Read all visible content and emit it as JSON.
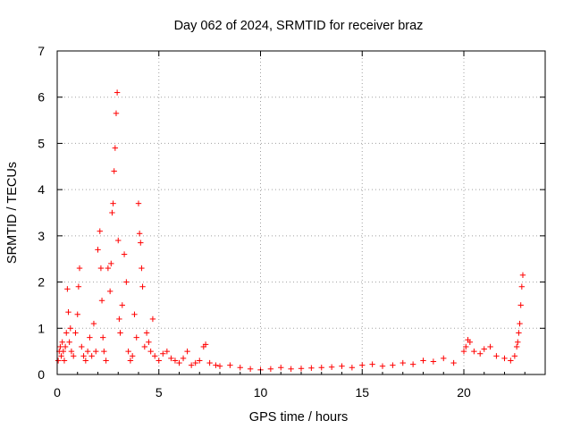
{
  "chart_data": {
    "type": "scatter",
    "title": "Day 062 of 2024, SRMTID for receiver braz",
    "xlabel": "GPS time / hours",
    "ylabel": "SRMTID / TECUs",
    "xlim": [
      0,
      24
    ],
    "ylim": [
      0,
      7
    ],
    "xticks": [
      0,
      5,
      10,
      15,
      20
    ],
    "yticks": [
      0,
      1,
      2,
      3,
      4,
      5,
      6,
      7
    ],
    "grid": true,
    "marker": "+",
    "color": "#ff0000",
    "series": [
      {
        "name": "SRMTID",
        "x": [
          0.05,
          0.1,
          0.15,
          0.2,
          0.25,
          0.3,
          0.35,
          0.4,
          0.45,
          0.5,
          0.55,
          0.6,
          0.65,
          0.7,
          0.8,
          0.9,
          1.0,
          1.05,
          1.1,
          1.2,
          1.3,
          1.4,
          1.5,
          1.6,
          1.7,
          1.8,
          1.9,
          2.0,
          2.1,
          2.15,
          2.2,
          2.25,
          2.3,
          2.4,
          2.5,
          2.6,
          2.65,
          2.7,
          2.75,
          2.8,
          2.85,
          2.9,
          2.95,
          3.0,
          3.05,
          3.1,
          3.2,
          3.3,
          3.4,
          3.5,
          3.6,
          3.7,
          3.8,
          3.9,
          4.0,
          4.05,
          4.1,
          4.15,
          4.2,
          4.3,
          4.4,
          4.5,
          4.6,
          4.7,
          4.8,
          5.0,
          5.2,
          5.4,
          5.6,
          5.8,
          6.0,
          6.2,
          6.4,
          6.6,
          6.8,
          7.0,
          7.2,
          7.3,
          7.5,
          7.8,
          8.0,
          8.5,
          9.0,
          9.5,
          10.0,
          10.5,
          11.0,
          11.5,
          12.0,
          12.5,
          13.0,
          13.5,
          14.0,
          14.5,
          15.0,
          15.5,
          16.0,
          16.5,
          17.0,
          17.5,
          18.0,
          18.5,
          19.0,
          19.5,
          20.0,
          20.1,
          20.2,
          20.3,
          20.5,
          20.8,
          21.0,
          21.3,
          21.6,
          22.0,
          22.3,
          22.5,
          22.6,
          22.65,
          22.7,
          22.75,
          22.8,
          22.85,
          22.9
        ],
        "y": [
          0.3,
          0.5,
          0.6,
          0.4,
          0.7,
          0.5,
          0.3,
          0.6,
          0.9,
          1.85,
          1.35,
          0.7,
          1.0,
          0.5,
          0.4,
          0.9,
          1.3,
          1.9,
          2.3,
          0.6,
          0.4,
          0.3,
          0.5,
          0.8,
          0.4,
          1.1,
          0.5,
          2.7,
          3.1,
          2.3,
          1.6,
          0.8,
          0.5,
          0.3,
          2.3,
          1.8,
          2.4,
          3.5,
          3.7,
          4.4,
          4.9,
          5.65,
          6.1,
          2.9,
          1.2,
          0.9,
          1.5,
          2.6,
          2.0,
          0.5,
          0.3,
          0.4,
          1.3,
          0.8,
          3.7,
          3.05,
          2.85,
          2.3,
          1.9,
          0.6,
          0.9,
          0.7,
          0.5,
          1.2,
          0.4,
          0.3,
          0.45,
          0.5,
          0.35,
          0.3,
          0.25,
          0.35,
          0.5,
          0.2,
          0.25,
          0.3,
          0.6,
          0.65,
          0.25,
          0.2,
          0.18,
          0.2,
          0.15,
          0.12,
          0.1,
          0.12,
          0.15,
          0.12,
          0.13,
          0.14,
          0.15,
          0.16,
          0.18,
          0.15,
          0.2,
          0.22,
          0.18,
          0.2,
          0.25,
          0.22,
          0.3,
          0.28,
          0.35,
          0.25,
          0.5,
          0.6,
          0.75,
          0.7,
          0.5,
          0.45,
          0.55,
          0.6,
          0.4,
          0.35,
          0.3,
          0.4,
          0.6,
          0.7,
          0.9,
          1.1,
          1.5,
          1.9,
          2.15
        ]
      }
    ]
  }
}
